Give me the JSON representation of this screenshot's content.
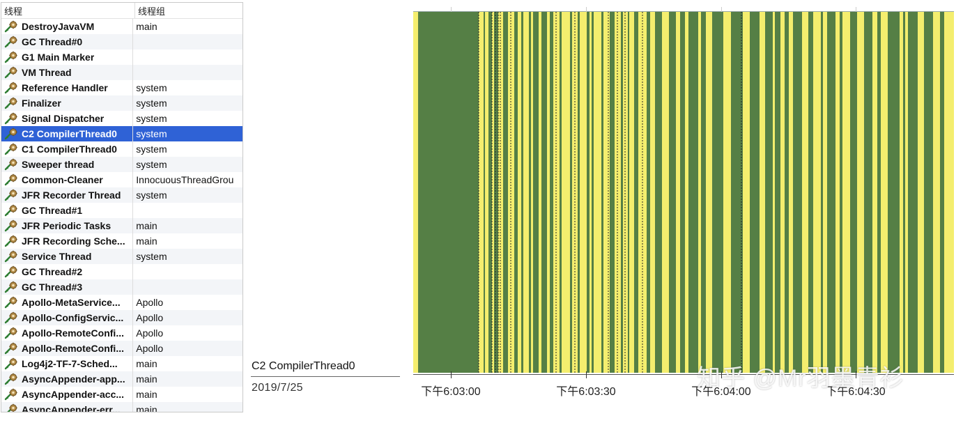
{
  "table": {
    "headers": {
      "thread": "线程",
      "group": "线程组"
    },
    "selected_index": 7,
    "rows": [
      {
        "name": "DestroyJavaVM",
        "group": "main"
      },
      {
        "name": "GC Thread#0",
        "group": ""
      },
      {
        "name": "G1 Main Marker",
        "group": ""
      },
      {
        "name": "VM Thread",
        "group": ""
      },
      {
        "name": "Reference Handler",
        "group": "system"
      },
      {
        "name": "Finalizer",
        "group": "system"
      },
      {
        "name": "Signal Dispatcher",
        "group": "system"
      },
      {
        "name": "C2 CompilerThread0",
        "group": "system"
      },
      {
        "name": "C1 CompilerThread0",
        "group": "system"
      },
      {
        "name": "Sweeper thread",
        "group": "system"
      },
      {
        "name": "Common-Cleaner",
        "group": "InnocuousThreadGrou"
      },
      {
        "name": "JFR Recorder Thread",
        "group": "system"
      },
      {
        "name": "GC Thread#1",
        "group": ""
      },
      {
        "name": "JFR Periodic Tasks",
        "group": "main"
      },
      {
        "name": "JFR Recording Sche...",
        "group": "main"
      },
      {
        "name": "Service Thread",
        "group": "system"
      },
      {
        "name": "GC Thread#2",
        "group": ""
      },
      {
        "name": "GC Thread#3",
        "group": ""
      },
      {
        "name": "Apollo-MetaService...",
        "group": "Apollo"
      },
      {
        "name": "Apollo-ConfigServic...",
        "group": "Apollo"
      },
      {
        "name": "Apollo-RemoteConfi...",
        "group": "Apollo"
      },
      {
        "name": "Apollo-RemoteConfi...",
        "group": "Apollo"
      },
      {
        "name": "Log4j2-TF-7-Sched...",
        "group": "main"
      },
      {
        "name": "AsyncAppender-app...",
        "group": "main"
      },
      {
        "name": "AsyncAppender-acc...",
        "group": "main"
      },
      {
        "name": "AsyncAppender-err...",
        "group": "main"
      }
    ]
  },
  "timeline": {
    "thread_label": "C2 CompilerThread0",
    "date": "2019/7/25",
    "ticks": [
      "下午6:03:00",
      "下午6:03:30",
      "下午6:04:00",
      "下午6:04:30"
    ],
    "colors": {
      "running": "#557f45",
      "waiting": "#f4ee6e",
      "highlight": "#2f62d6"
    }
  },
  "watermark": "知乎 @Mr羽墨青衫",
  "icons": {
    "thread": "thread-gear-icon"
  }
}
